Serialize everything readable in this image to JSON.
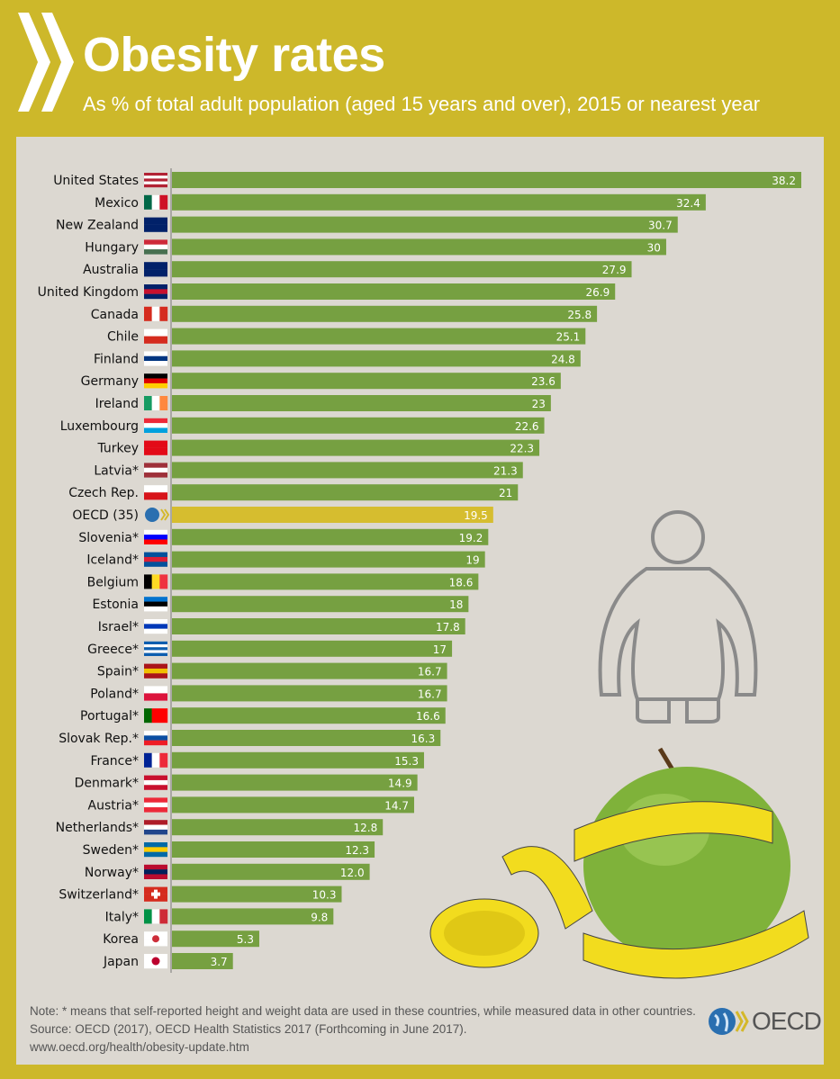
{
  "header": {
    "title": "Obesity rates",
    "subtitle": "As % of total adult population (aged 15 years and over), 2015 or nearest year"
  },
  "colors": {
    "background": "#cdb82a",
    "panel": "#dcd8d1",
    "bar": "#76a041",
    "highlight_bar": "#d6bd2f"
  },
  "chart_data": {
    "type": "bar",
    "orientation": "horizontal",
    "xlim": [
      0,
      38.2
    ],
    "grid": false,
    "title": "Obesity rates",
    "categories": [
      "United States",
      "Mexico",
      "New Zealand",
      "Hungary",
      "Australia",
      "United Kingdom",
      "Canada",
      "Chile",
      "Finland",
      "Germany",
      "Ireland",
      "Luxembourg",
      "Turkey",
      "Latvia*",
      "Czech Rep.",
      "OECD (35)",
      "Slovenia*",
      "Iceland*",
      "Belgium",
      "Estonia",
      "Israel*",
      "Greece*",
      "Spain*",
      "Poland*",
      "Portugal*",
      "Slovak Rep.*",
      "France*",
      "Denmark*",
      "Austria*",
      "Netherlands*",
      "Sweden*",
      "Norway*",
      "Switzerland*",
      "Italy*",
      "Korea",
      "Japan"
    ],
    "values": [
      38.2,
      32.4,
      30.7,
      30,
      27.9,
      26.9,
      25.8,
      25.1,
      24.8,
      23.6,
      23,
      22.6,
      22.3,
      21.3,
      21,
      19.5,
      19.2,
      19,
      18.6,
      18,
      17.8,
      17,
      16.7,
      16.7,
      16.6,
      16.3,
      15.3,
      14.9,
      14.7,
      12.8,
      12.3,
      12.0,
      10.3,
      9.8,
      5.3,
      3.7
    ],
    "value_labels": [
      "38.2",
      "32.4",
      "30.7",
      "30",
      "27.9",
      "26.9",
      "25.8",
      "25.1",
      "24.8",
      "23.6",
      "23",
      "22.6",
      "22.3",
      "21.3",
      "21",
      "19.5",
      "19.2",
      "19",
      "18.6",
      "18",
      "17.8",
      "17",
      "16.7",
      "16.7",
      "16.6",
      "16.3",
      "15.3",
      "14.9",
      "14.7",
      "12.8",
      "12.3",
      "12.0",
      "10.3",
      "9.8",
      "5.3",
      "3.7"
    ],
    "highlight": "OECD (35)",
    "flags": [
      [
        "h",
        "#b22234",
        "#fff",
        "#b22234",
        "#fff",
        "#b22234"
      ],
      [
        "v",
        "#006847",
        "#fff",
        "#ce1126"
      ],
      [
        "h",
        "#012169",
        "#012169"
      ],
      [
        "h",
        "#ce2939",
        "#fff",
        "#477050"
      ],
      [
        "h",
        "#012169",
        "#012169"
      ],
      [
        "h",
        "#012169",
        "#c8102e",
        "#012169"
      ],
      [
        "v",
        "#d52b1e",
        "#fff",
        "#d52b1e"
      ],
      [
        "h",
        "#fff",
        "#d52b1e"
      ],
      [
        "h",
        "#fff",
        "#003580",
        "#fff"
      ],
      [
        "h",
        "#000",
        "#dd0000",
        "#ffce00"
      ],
      [
        "v",
        "#169b62",
        "#fff",
        "#ff883e"
      ],
      [
        "h",
        "#ed2939",
        "#fff",
        "#00a1de"
      ],
      [
        "h",
        "#e30a17",
        "#e30a17"
      ],
      [
        "h",
        "#9e3039",
        "#fff",
        "#9e3039"
      ],
      [
        "h",
        "#fff",
        "#d7141a"
      ],
      [
        "h",
        "#2a6ebb",
        "#2a6ebb"
      ],
      [
        "h",
        "#fff",
        "#0000ff",
        "#ff0000"
      ],
      [
        "h",
        "#02529c",
        "#dc1e35",
        "#02529c"
      ],
      [
        "v",
        "#000",
        "#fdda24",
        "#ef3340"
      ],
      [
        "h",
        "#0072ce",
        "#000",
        "#fff"
      ],
      [
        "h",
        "#fff",
        "#0038b8",
        "#fff"
      ],
      [
        "h",
        "#0d5eaf",
        "#fff",
        "#0d5eaf",
        "#fff",
        "#0d5eaf"
      ],
      [
        "h",
        "#aa151b",
        "#f1bf00",
        "#aa151b"
      ],
      [
        "h",
        "#fff",
        "#dc143c"
      ],
      [
        "v",
        "#006600",
        "#ff0000",
        "#ff0000"
      ],
      [
        "h",
        "#fff",
        "#0b4ea2",
        "#ee1c25"
      ],
      [
        "v",
        "#002395",
        "#fff",
        "#ed2939"
      ],
      [
        "h",
        "#c8102e",
        "#fff",
        "#c8102e"
      ],
      [
        "h",
        "#ed2939",
        "#fff",
        "#ed2939"
      ],
      [
        "h",
        "#ae1c28",
        "#fff",
        "#21468b"
      ],
      [
        "h",
        "#006aa7",
        "#fecc00",
        "#006aa7"
      ],
      [
        "h",
        "#ba0c2f",
        "#00205b",
        "#ba0c2f"
      ],
      [
        "h",
        "#d52b1e",
        "#d52b1e"
      ],
      [
        "v",
        "#009246",
        "#fff",
        "#ce2b37"
      ],
      [
        "h",
        "#fff",
        "#fff"
      ],
      [
        "h",
        "#fff",
        "#fff"
      ]
    ]
  },
  "footer": {
    "note": "Note: * means that self-reported height and weight data are used in these countries, while measured data in other countries.",
    "source": "Source: OECD (2017), OECD Health Statistics 2017 (Forthcoming in June 2017).",
    "url": "www.oecd.org/health/obesity-update.htm",
    "logo_text": "OECD"
  }
}
